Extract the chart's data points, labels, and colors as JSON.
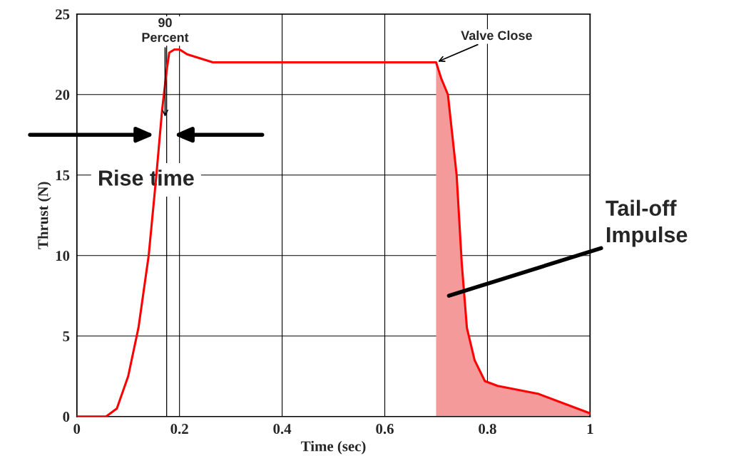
{
  "chart_data": {
    "type": "line",
    "xlabel": "Time (sec)",
    "ylabel": "Thrust (N)",
    "xlim": [
      0,
      1
    ],
    "ylim": [
      0,
      25
    ],
    "xticks": [
      0,
      0.2,
      0.4,
      0.6,
      0.8,
      1
    ],
    "yticks": [
      0,
      5,
      10,
      15,
      20,
      25
    ],
    "grid": true,
    "marker": "none",
    "line_style": "solid",
    "series": [
      {
        "color": "#ff0000",
        "x": [
          0,
          0.057,
          0.078,
          0.1,
          0.12,
          0.14,
          0.155,
          0.166,
          0.175,
          0.18,
          0.19,
          0.2,
          0.215,
          0.265,
          0.7,
          0.71,
          0.723,
          0.74,
          0.75,
          0.76,
          0.775,
          0.795,
          0.82,
          0.9,
          1.0
        ],
        "values": [
          0,
          0,
          0.5,
          2.5,
          5.5,
          10,
          15,
          19,
          21.5,
          22.6,
          22.8,
          22.8,
          22.5,
          22,
          22,
          21,
          20,
          15,
          9.5,
          5.5,
          3.5,
          2.2,
          1.9,
          1.4,
          0.2
        ]
      },
      {
        "type": "area",
        "color": "#f59a9a",
        "x": [
          0.7,
          0.71,
          0.723,
          0.74,
          0.75,
          0.76,
          0.775,
          0.795,
          0.82,
          0.9,
          1.0
        ],
        "values": [
          22,
          21,
          20,
          15,
          9.5,
          5.5,
          3.5,
          2.2,
          1.9,
          1.4,
          0.2
        ]
      }
    ],
    "ref_lines": [
      {
        "axis": "x",
        "value": 0.175,
        "color": "#000000"
      }
    ],
    "annotations": [
      {
        "text": "90\nPercent",
        "x": 0.172,
        "y": 18.5
      },
      {
        "text": "Valve Close",
        "x": 0.7,
        "y": 22
      },
      {
        "text": "Rise time",
        "x": 0.175,
        "y": 17.5
      },
      "Tail-off\nImpulse"
    ]
  }
}
